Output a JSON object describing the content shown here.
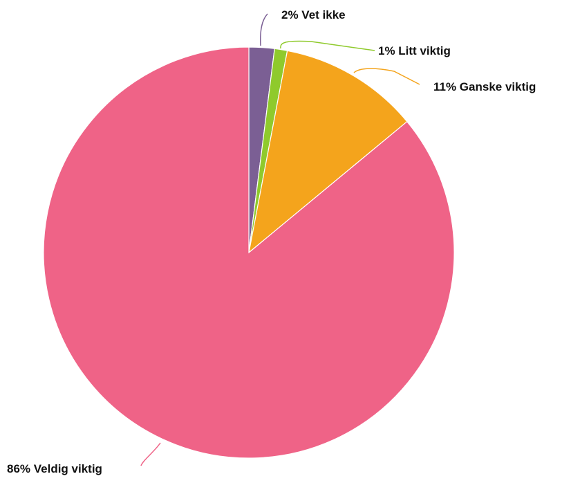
{
  "chart_data": {
    "type": "pie",
    "slices": [
      {
        "label": "Vet ikke",
        "value": 2,
        "percent_label": "2%",
        "display": "2% Vet ikke",
        "color": "#7b5f94"
      },
      {
        "label": "Litt viktig",
        "value": 1,
        "percent_label": "1%",
        "display": "1% Litt viktig",
        "color": "#8fca2c"
      },
      {
        "label": "Ganske viktig",
        "value": 11,
        "percent_label": "11%",
        "display": "11% Ganske viktig",
        "color": "#f4a41c"
      },
      {
        "label": "Veldig viktig",
        "value": 86,
        "percent_label": "86%",
        "display": "86% Veldig viktig",
        "color": "#ef6387"
      }
    ],
    "start_angle": "12 o'clock",
    "direction": "clockwise",
    "legend": "none",
    "labels": "outside with leader lines"
  }
}
